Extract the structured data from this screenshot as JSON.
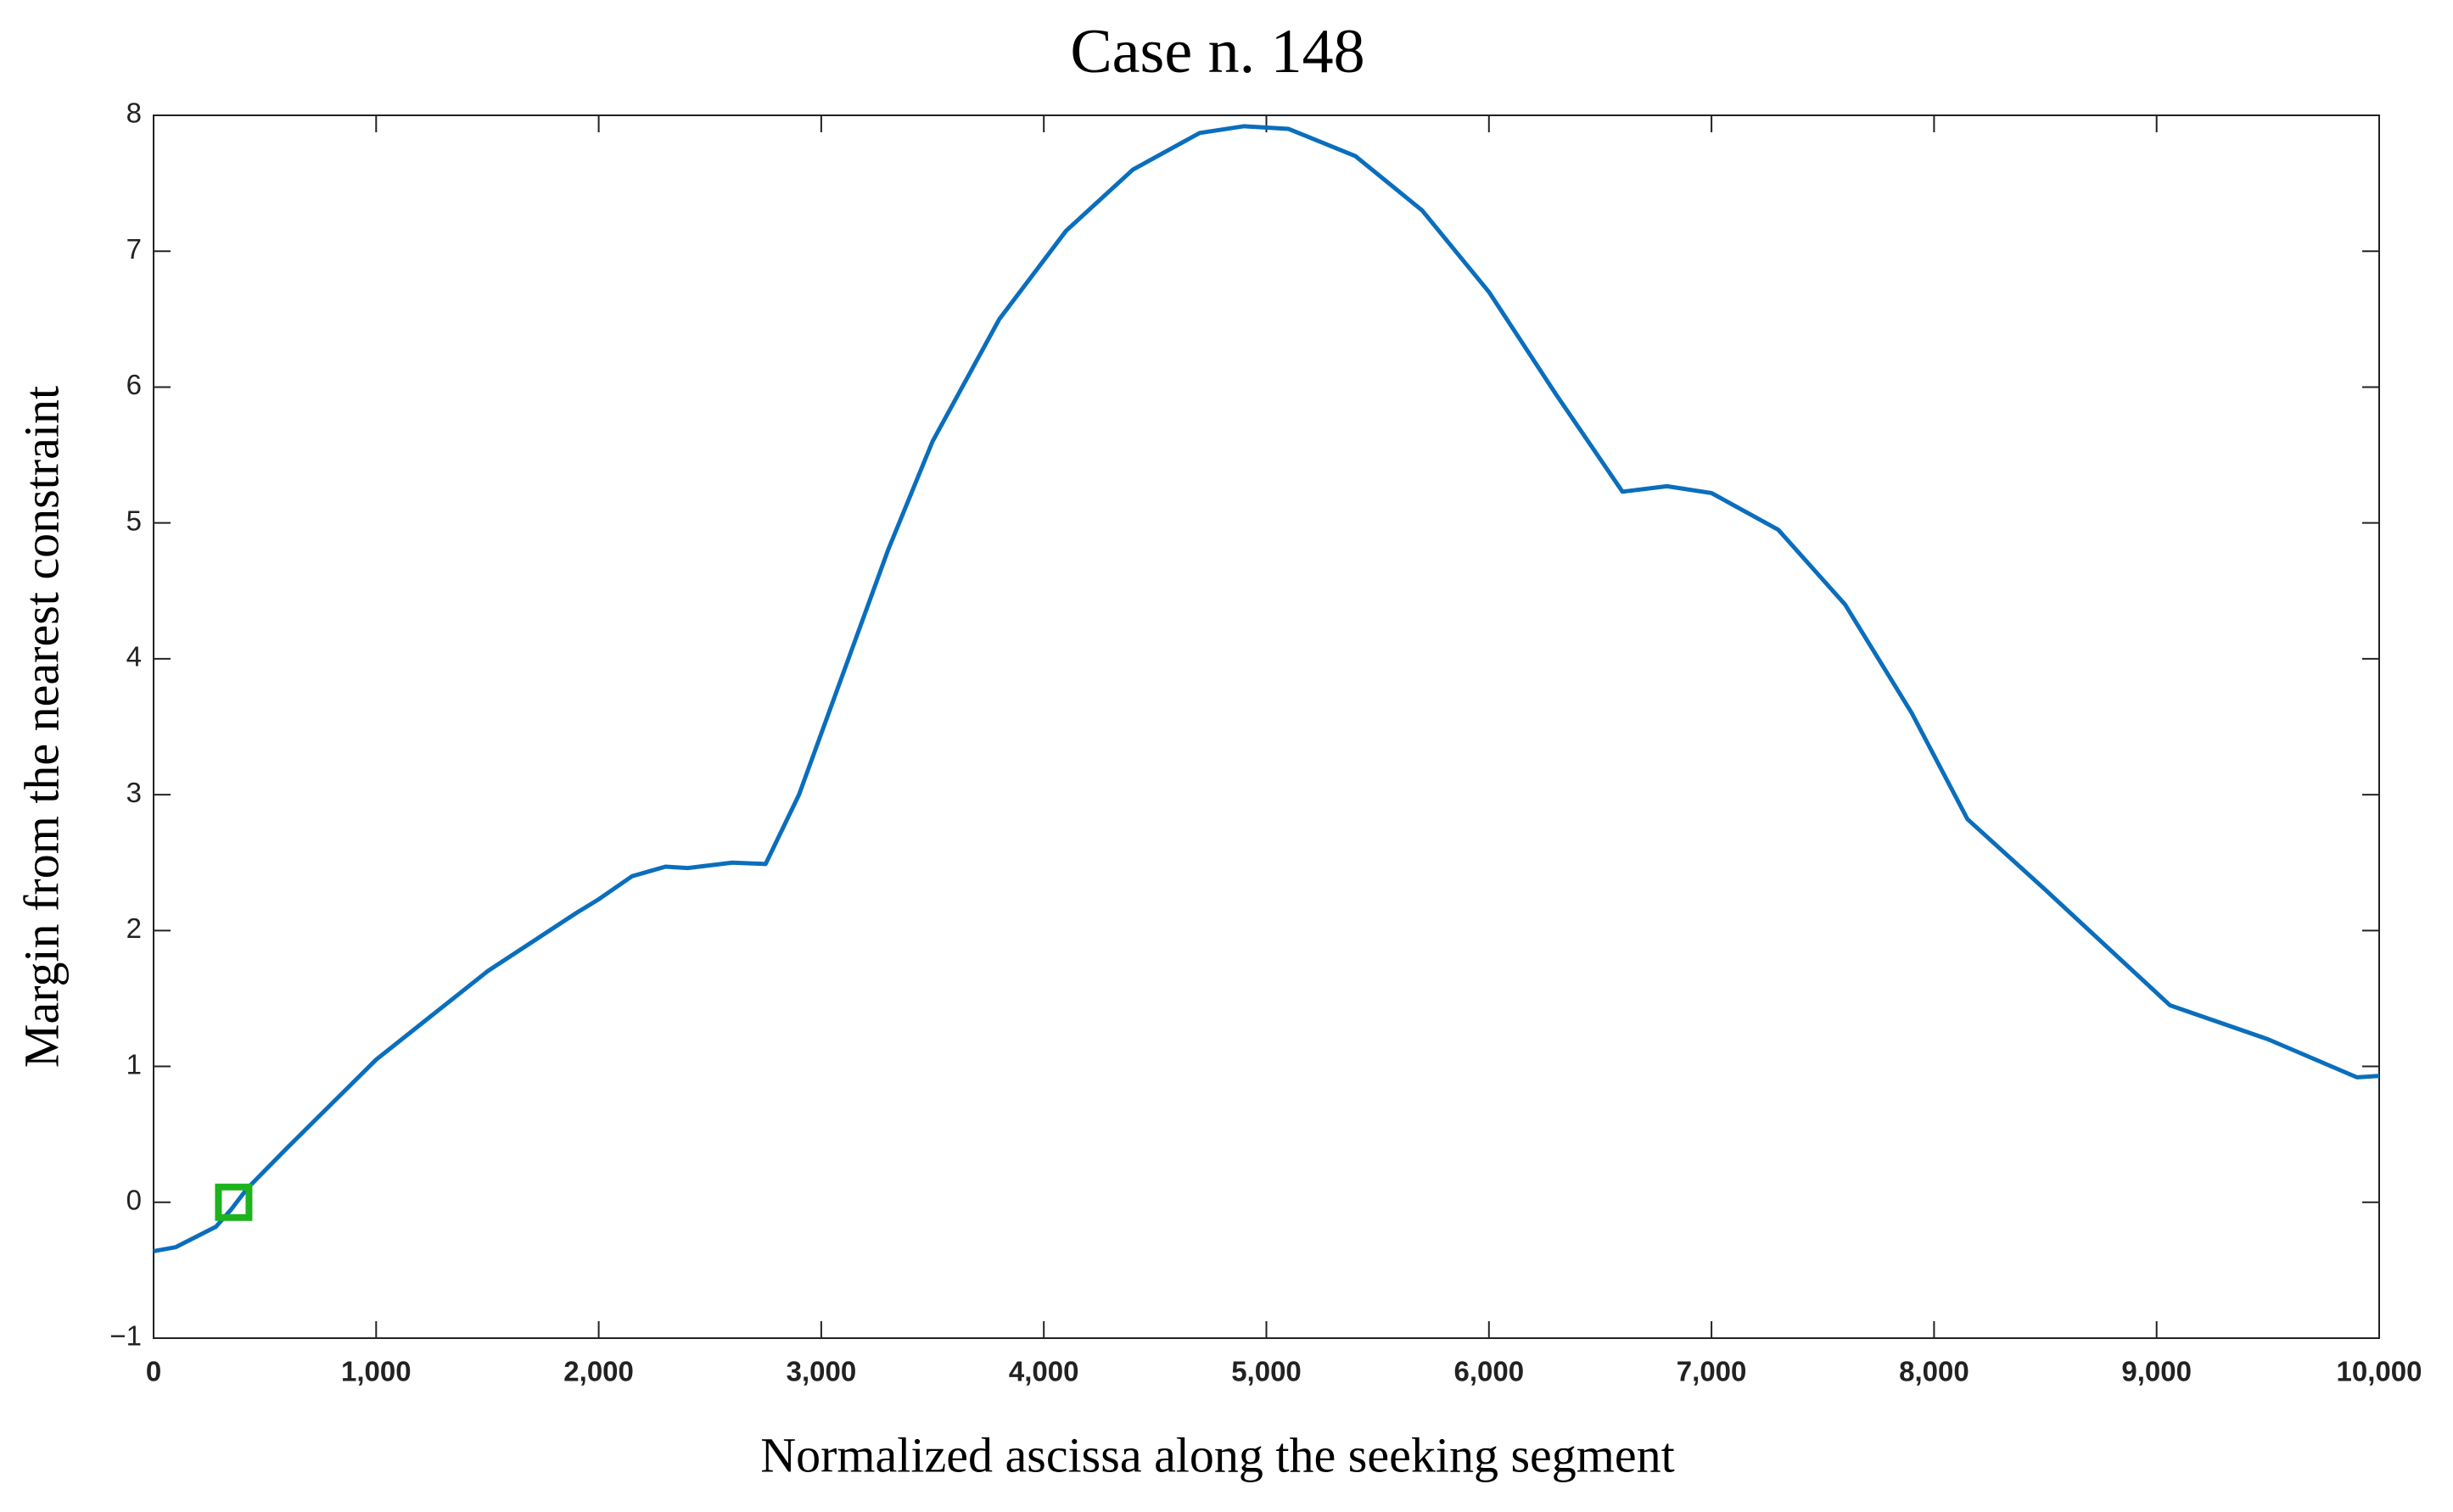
{
  "chart_data": {
    "type": "line",
    "title": "Case n. 148",
    "xlabel": "Normalized ascissa along the seeking segment",
    "ylabel": "Margin  from  the  nearest  constraint",
    "xlim": [
      0,
      10000
    ],
    "ylim": [
      -1,
      8
    ],
    "xticks": [
      0,
      {
        "value": 1000,
        "label": "1,000"
      },
      {
        "value": 2000,
        "label": "2,000"
      },
      {
        "value": 3000,
        "label": "3,000"
      },
      {
        "value": 4000,
        "label": "4,000"
      },
      {
        "value": 5000,
        "label": "5,000"
      },
      {
        "value": 6000,
        "label": "6,000"
      },
      {
        "value": 7000,
        "label": "7,000"
      },
      {
        "value": 8000,
        "label": "8,000"
      },
      {
        "value": 9000,
        "label": "9,000"
      },
      {
        "value": 10000,
        "label": "10,000"
      }
    ],
    "yticks": [
      {
        "value": -1,
        "label": "−1"
      },
      0,
      1,
      2,
      3,
      4,
      5,
      6,
      7,
      8
    ],
    "grid": false,
    "x": [
      0,
      100,
      280,
      350,
      420,
      600,
      1000,
      1500,
      1900,
      2000,
      2150,
      2300,
      2400,
      2600,
      2750,
      2900,
      3100,
      3300,
      3500,
      3800,
      4100,
      4400,
      4700,
      4900,
      5100,
      5400,
      5700,
      6000,
      6300,
      6600,
      6800,
      7000,
      7300,
      7600,
      7900,
      8150,
      8500,
      9060,
      9500,
      9900,
      10000
    ],
    "series": [
      {
        "color": "#0a6ebd",
        "values": [
          -0.36,
          -0.33,
          -0.18,
          -0.05,
          0.1,
          0.4,
          1.05,
          1.7,
          2.13,
          2.23,
          2.4,
          2.47,
          2.46,
          2.5,
          2.49,
          3.0,
          3.9,
          4.8,
          5.6,
          6.5,
          7.15,
          7.6,
          7.87,
          7.92,
          7.9,
          7.7,
          7.3,
          6.7,
          5.95,
          5.23,
          5.27,
          5.22,
          4.95,
          4.4,
          3.6,
          2.82,
          2.3,
          1.45,
          1.2,
          0.92,
          0.93
        ]
      }
    ],
    "marker": {
      "x": 360,
      "y": 0,
      "color": "#1db31d"
    }
  }
}
